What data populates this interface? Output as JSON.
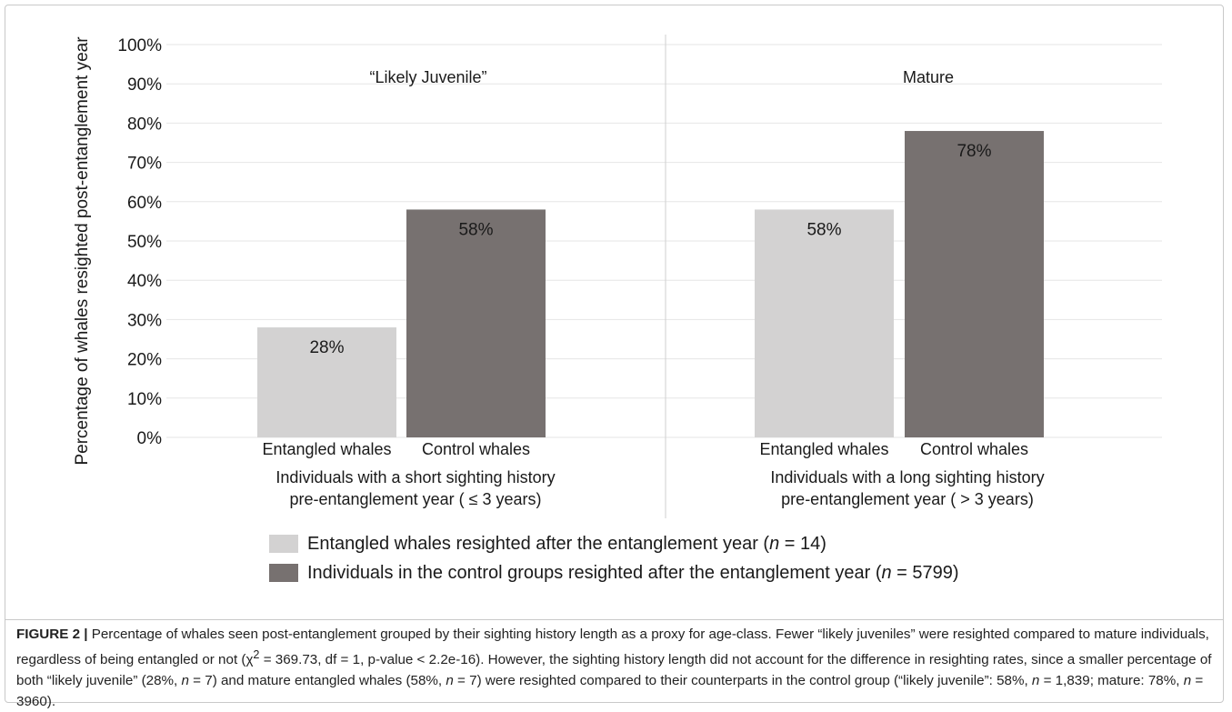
{
  "chart_data": {
    "type": "bar",
    "ylabel": "Percentage of whales resighted post-entanglement year",
    "ylim": [
      0,
      100
    ],
    "yticks": [
      "0%",
      "10%",
      "20%",
      "30%",
      "40%",
      "50%",
      "60%",
      "70%",
      "80%",
      "90%",
      "100%"
    ],
    "grid": true,
    "legend_position": "bottom",
    "panels": [
      {
        "title": "“Likely Juvenile”",
        "group_label_line1": "Individuals with a short sighting history",
        "group_label_line2": "pre-entanglement year ( ≤ 3 years)",
        "categories": [
          "Entangled whales",
          "Control whales"
        ],
        "values": [
          28,
          58
        ],
        "value_labels": [
          "28%",
          "58%"
        ]
      },
      {
        "title": "Mature",
        "group_label_line1": "Individuals with a long sighting history",
        "group_label_line2": "pre-entanglement year ( > 3 years)",
        "categories": [
          "Entangled whales",
          "Control whales"
        ],
        "values": [
          58,
          78
        ],
        "value_labels": [
          "58%",
          "78%"
        ]
      }
    ],
    "series_colors": [
      "#d3d2d2",
      "#777170"
    ]
  },
  "legend": [
    {
      "text_before": "Entangled whales resighted after the entanglement year (",
      "n_symbol": "n",
      "text_after": " = 14)",
      "color": "#d3d2d2"
    },
    {
      "text_before": "Individuals in the control groups resighted after the entanglement year (",
      "n_symbol": "n",
      "text_after": " = 5799)",
      "color": "#777170"
    }
  ],
  "caption": {
    "label": "FIGURE 2 |",
    "parts": [
      " Percentage of whales seen post-entanglement grouped by their sighting history length as a proxy for age-class. Fewer “likely juveniles” were resighted compared to mature individuals, regardless of being entangled or not (χ",
      "2",
      " = 369.73, df = 1, p-value < 2.2e-16). However, the sighting history length did not account for the difference in resighting rates, since a smaller percentage of both “likely juvenile” (28%, ",
      "n",
      " = 7) and mature entangled whales (58%, ",
      "n",
      " = 7) were resighted compared to their counterparts in the control group (“likely juvenile”: 58%, ",
      "n",
      " = 1,839; mature: 78%, ",
      "n",
      " = 3960)."
    ]
  }
}
